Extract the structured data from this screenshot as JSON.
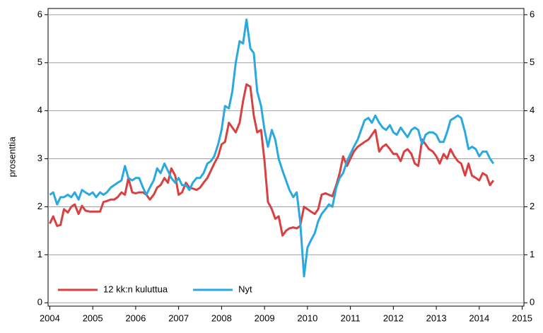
{
  "chart_data": {
    "type": "line",
    "y_label": "prosenttia",
    "x": [
      2004,
      2004.08,
      2004.17,
      2004.25,
      2004.33,
      2004.42,
      2004.5,
      2004.58,
      2004.67,
      2004.75,
      2004.83,
      2004.92,
      2005,
      2005.08,
      2005.17,
      2005.25,
      2005.33,
      2005.42,
      2005.5,
      2005.58,
      2005.67,
      2005.75,
      2005.83,
      2005.92,
      2006,
      2006.08,
      2006.17,
      2006.25,
      2006.33,
      2006.42,
      2006.5,
      2006.58,
      2006.67,
      2006.75,
      2006.83,
      2006.92,
      2007,
      2007.08,
      2007.17,
      2007.25,
      2007.33,
      2007.42,
      2007.5,
      2007.58,
      2007.67,
      2007.75,
      2007.83,
      2007.92,
      2008,
      2008.08,
      2008.17,
      2008.25,
      2008.33,
      2008.42,
      2008.5,
      2008.58,
      2008.67,
      2008.75,
      2008.83,
      2008.92,
      2009,
      2009.08,
      2009.17,
      2009.25,
      2009.33,
      2009.42,
      2009.5,
      2009.58,
      2009.67,
      2009.75,
      2009.83,
      2009.92,
      2010,
      2010.08,
      2010.17,
      2010.25,
      2010.33,
      2010.42,
      2010.5,
      2010.58,
      2010.67,
      2010.75,
      2010.83,
      2010.92,
      2011,
      2011.08,
      2011.17,
      2011.25,
      2011.33,
      2011.42,
      2011.5,
      2011.58,
      2011.67,
      2011.75,
      2011.83,
      2011.92,
      2012,
      2012.08,
      2012.17,
      2012.25,
      2012.33,
      2012.42,
      2012.5,
      2012.58,
      2012.67,
      2012.75,
      2012.83,
      2012.92,
      2013,
      2013.08,
      2013.17,
      2013.25,
      2013.33,
      2013.42,
      2013.5,
      2013.58,
      2013.67,
      2013.75,
      2013.83,
      2013.92,
      2014,
      2014.08,
      2014.17,
      2014.25,
      2014.33
    ],
    "series": [
      {
        "name": "12 kk:n kuluttua",
        "color": "#d9403f",
        "values": [
          1.65,
          1.8,
          1.6,
          1.62,
          1.95,
          1.88,
          2.0,
          2.05,
          1.85,
          2.02,
          1.92,
          1.9,
          1.9,
          1.9,
          1.9,
          2.1,
          2.12,
          2.15,
          2.15,
          2.2,
          2.3,
          2.25,
          2.6,
          2.3,
          2.28,
          2.3,
          2.3,
          2.25,
          2.15,
          2.25,
          2.4,
          2.45,
          2.6,
          2.5,
          2.8,
          2.65,
          2.25,
          2.3,
          2.5,
          2.4,
          2.38,
          2.35,
          2.4,
          2.5,
          2.6,
          2.75,
          2.9,
          3.05,
          3.3,
          3.35,
          3.75,
          3.65,
          3.55,
          3.75,
          4.2,
          4.55,
          4.5,
          3.9,
          3.55,
          3.6,
          2.95,
          2.1,
          1.95,
          1.75,
          1.8,
          1.4,
          1.5,
          1.55,
          1.57,
          1.55,
          1.6,
          2.0,
          1.95,
          1.9,
          1.85,
          1.95,
          2.25,
          2.28,
          2.25,
          2.22,
          2.45,
          2.7,
          3.05,
          2.85,
          3.0,
          3.15,
          3.25,
          3.3,
          3.35,
          3.4,
          3.5,
          3.6,
          3.15,
          3.25,
          3.3,
          3.2,
          3.1,
          3.1,
          2.95,
          3.15,
          3.2,
          3.1,
          2.9,
          2.85,
          3.4,
          3.3,
          3.2,
          3.15,
          3.05,
          2.9,
          3.1,
          3.0,
          3.2,
          3.05,
          2.95,
          2.9,
          2.65,
          2.9,
          2.65,
          2.6,
          2.55,
          2.7,
          2.65,
          2.45,
          2.55
        ]
      },
      {
        "name": "Nyt",
        "color": "#29a9e0",
        "values": [
          2.25,
          2.3,
          2.05,
          2.2,
          2.2,
          2.25,
          2.2,
          2.3,
          2.15,
          2.35,
          2.3,
          2.25,
          2.3,
          2.2,
          2.3,
          2.25,
          2.3,
          2.4,
          2.45,
          2.5,
          2.55,
          2.85,
          2.6,
          2.55,
          2.6,
          2.6,
          2.4,
          2.25,
          2.4,
          2.55,
          2.8,
          2.7,
          2.9,
          2.75,
          2.6,
          2.5,
          2.6,
          2.45,
          2.45,
          2.35,
          2.5,
          2.6,
          2.6,
          2.7,
          2.9,
          2.95,
          3.05,
          3.3,
          3.6,
          4.1,
          4.05,
          4.4,
          5.0,
          5.45,
          5.4,
          5.9,
          5.3,
          5.2,
          4.4,
          4.1,
          3.6,
          3.25,
          3.6,
          3.4,
          3.0,
          2.75,
          2.55,
          2.35,
          2.2,
          2.3,
          1.7,
          0.55,
          1.15,
          1.3,
          1.45,
          1.7,
          1.85,
          1.95,
          2.05,
          2.0,
          2.4,
          2.6,
          2.7,
          2.95,
          3.1,
          3.25,
          3.4,
          3.6,
          3.8,
          3.85,
          3.75,
          3.9,
          3.75,
          3.65,
          3.6,
          3.7,
          3.55,
          3.5,
          3.65,
          3.55,
          3.45,
          3.6,
          3.65,
          3.6,
          3.3,
          3.5,
          3.55,
          3.55,
          3.5,
          3.35,
          3.35,
          3.55,
          3.8,
          3.85,
          3.9,
          3.85,
          3.55,
          3.2,
          3.25,
          3.2,
          3.05,
          3.15,
          3.15,
          3.0,
          2.9
        ]
      }
    ],
    "xlim": [
      2003.96,
      2015.04
    ],
    "xticks": [
      2004,
      2005,
      2006,
      2007,
      2008,
      2009,
      2010,
      2011,
      2012,
      2013,
      2014,
      2015
    ],
    "ylim": [
      -0.07,
      6.13
    ],
    "yticks": [
      0,
      1,
      2,
      3,
      4,
      5,
      6
    ],
    "y2lim": [
      -0.07,
      6.13
    ],
    "y2ticks": [
      0,
      1,
      2,
      3,
      4,
      5,
      6
    ],
    "grid": true,
    "legend": "lower-left"
  }
}
